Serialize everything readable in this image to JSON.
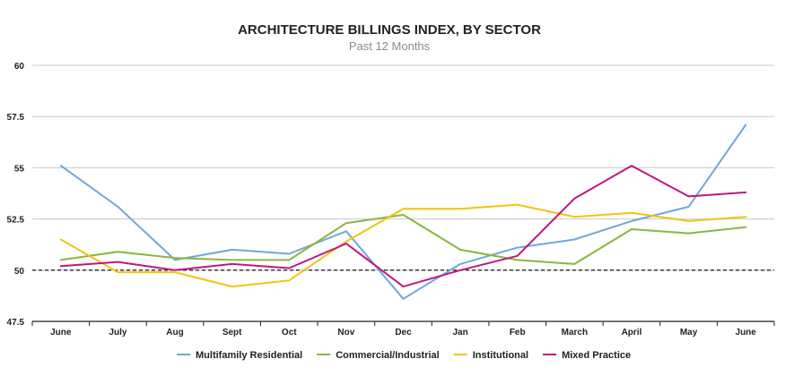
{
  "chart_data": {
    "type": "line",
    "title": "ARCHITECTURE BILLINGS INDEX, BY SECTOR",
    "subtitle": "Past 12 Months",
    "xlabel": "",
    "ylabel": "",
    "categories": [
      "June",
      "July",
      "Aug",
      "Sept",
      "Oct",
      "Nov",
      "Dec",
      "Jan",
      "Feb",
      "March",
      "April",
      "May",
      "June"
    ],
    "ylim": [
      47.5,
      60
    ],
    "yticks": [
      47.5,
      50,
      52.5,
      55,
      57.5,
      60
    ],
    "ytick_labels": [
      "47.5",
      "50",
      "52.5",
      "55",
      "57.5",
      "60"
    ],
    "grid": true,
    "reference_line": {
      "value": 50,
      "style": "dashed",
      "color": "#000000"
    },
    "legend_position": "bottom",
    "series": [
      {
        "name": "Multifamily Residential",
        "color": "#6fa8dc",
        "values": [
          55.1,
          53.1,
          50.5,
          51.0,
          50.8,
          51.9,
          48.6,
          50.3,
          51.1,
          51.5,
          52.4,
          53.1,
          57.1
        ]
      },
      {
        "name": "Commercial/Industrial",
        "color": "#8ab63f",
        "values": [
          50.5,
          50.9,
          50.6,
          50.5,
          50.5,
          52.3,
          52.7,
          51.0,
          50.5,
          50.3,
          52.0,
          51.8,
          52.1
        ]
      },
      {
        "name": "Institutional",
        "color": "#f1c40f",
        "values": [
          51.5,
          49.9,
          49.9,
          49.2,
          49.5,
          51.4,
          53.0,
          53.0,
          53.2,
          52.6,
          52.8,
          52.4,
          52.6
        ]
      },
      {
        "name": "Mixed Practice",
        "color": "#c0177f",
        "values": [
          50.2,
          50.4,
          50.0,
          50.3,
          50.1,
          51.3,
          49.2,
          50.0,
          50.7,
          53.5,
          55.1,
          53.6,
          53.8
        ]
      }
    ]
  }
}
